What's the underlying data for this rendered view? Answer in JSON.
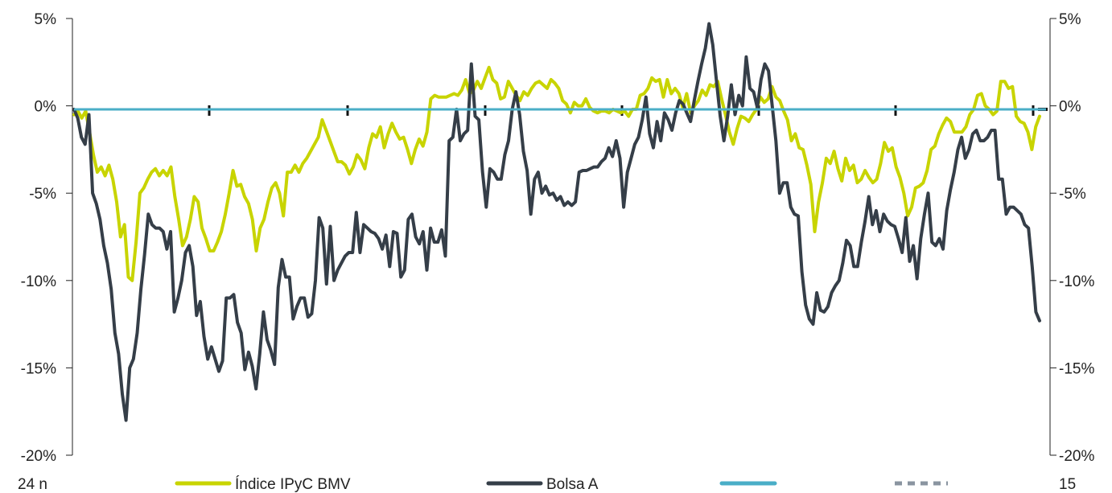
{
  "chart_data": {
    "type": "line",
    "title": "",
    "xlabel": "",
    "ylabel": "",
    "ylim": [
      -20,
      5
    ],
    "y_ticks": [
      5,
      0,
      -5,
      -10,
      -15,
      -20
    ],
    "y_tick_labels": [
      "5%",
      "0%",
      "-5%",
      "-10%",
      "-15%",
      "-20%"
    ],
    "x_ticks_visible": [
      "24 n",
      "15"
    ],
    "grid": false,
    "legend_placement": "bottom",
    "series": [
      {
        "name": "Índice IPyC BMV",
        "color": "#c8d400",
        "style": "solid",
        "values": [
          -0.5,
          -0.3,
          -0.7,
          -0.3,
          -1.5,
          -2.8,
          -3.8,
          -3.5,
          -4.0,
          -3.4,
          -4.2,
          -5.5,
          -7.5,
          -6.8,
          -9.8,
          -10.0,
          -7.8,
          -5.0,
          -4.7,
          -4.2,
          -3.8,
          -3.6,
          -4.0,
          -3.7,
          -4.0,
          -3.5,
          -5.2,
          -6.5,
          -8.0,
          -7.5,
          -6.5,
          -5.2,
          -5.5,
          -7.0,
          -7.6,
          -8.3,
          -8.3,
          -7.8,
          -7.2,
          -6.2,
          -5.0,
          -3.7,
          -4.6,
          -4.5,
          -5.2,
          -5.6,
          -6.5,
          -8.3,
          -7.0,
          -6.5,
          -5.5,
          -4.7,
          -4.4,
          -5.0,
          -6.3,
          -3.8,
          -3.8,
          -3.4,
          -3.8,
          -3.3,
          -3.0,
          -2.6,
          -2.2,
          -1.8,
          -0.8,
          -1.4,
          -2.0,
          -2.6,
          -3.2,
          -3.2,
          -3.4,
          -3.9,
          -3.5,
          -2.8,
          -3.1,
          -3.6,
          -2.4,
          -1.6,
          -1.8,
          -1.2,
          -2.4,
          -1.6,
          -1.0,
          -1.5,
          -1.9,
          -1.8,
          -2.5,
          -3.3,
          -2.5,
          -1.9,
          -2.3,
          -1.5,
          0.4,
          0.6,
          0.5,
          0.5,
          0.5,
          0.6,
          0.7,
          0.6,
          0.9,
          1.5,
          0.7,
          0.9,
          1.4,
          1.0,
          1.6,
          2.2,
          1.5,
          1.3,
          0.4,
          0.5,
          1.4,
          1.0,
          0.6,
          0.3,
          0.8,
          0.6,
          1.0,
          1.3,
          1.4,
          1.2,
          1.0,
          1.5,
          1.3,
          1.0,
          0.3,
          0.1,
          -0.4,
          0.2,
          0.0,
          0.0,
          0.4,
          -0.1,
          -0.3,
          -0.4,
          -0.3,
          -0.3,
          -0.4,
          -0.2,
          -0.3,
          -0.4,
          -0.3,
          -0.6,
          -0.2,
          -0.2,
          0.6,
          0.7,
          1.0,
          1.6,
          1.4,
          1.5,
          0.5,
          1.5,
          0.7,
          1.0,
          0.7,
          -0.1,
          0.7,
          -0.4,
          0.0,
          0.3,
          0.9,
          0.6,
          1.2,
          1.1,
          1.4,
          0.4,
          -0.5,
          -1.5,
          -2.2,
          -1.3,
          -0.6,
          -0.7,
          -0.9,
          -0.5,
          -0.2,
          0.5,
          0.2,
          0.4,
          1.1,
          0.5,
          0.3,
          -0.3,
          -0.8,
          -2.0,
          -1.6,
          -2.4,
          -2.5,
          -3.4,
          -4.5,
          -7.2,
          -5.5,
          -4.4,
          -3.0,
          -3.3,
          -2.6,
          -3.6,
          -4.3,
          -3.0,
          -3.7,
          -3.4,
          -4.4,
          -4.2,
          -3.7,
          -4.1,
          -4.4,
          -4.2,
          -3.3,
          -2.1,
          -2.6,
          -2.4,
          -3.5,
          -4.1,
          -5.0,
          -6.3,
          -5.8,
          -4.7,
          -4.6,
          -4.4,
          -3.7,
          -2.5,
          -2.3,
          -1.6,
          -1.1,
          -0.7,
          -0.9,
          -1.5,
          -1.5,
          -1.5,
          -1.2,
          -0.5,
          -0.2,
          0.6,
          0.7,
          0.0,
          -0.2,
          -0.5,
          -0.3,
          1.4,
          1.4,
          1.0,
          1.1,
          -0.6,
          -0.9,
          -1.0,
          -1.5,
          -2.5,
          -1.2,
          -0.6
        ]
      },
      {
        "name": "Bolsa A",
        "color": "#353e48",
        "style": "solid",
        "values": [
          -0.2,
          -0.7,
          -1.8,
          -2.2,
          -0.5,
          -5.0,
          -5.6,
          -6.5,
          -8.0,
          -9.0,
          -10.5,
          -13.0,
          -14.2,
          -16.5,
          -18.0,
          -15.0,
          -14.5,
          -13.0,
          -10.5,
          -8.5,
          -6.2,
          -6.8,
          -7.0,
          -7.0,
          -7.2,
          -8.2,
          -7.2,
          -11.8,
          -11.0,
          -10.0,
          -8.4,
          -8.0,
          -9.2,
          -12.0,
          -11.2,
          -13.2,
          -14.5,
          -13.8,
          -14.5,
          -15.2,
          -14.6,
          -11.0,
          -11.0,
          -10.8,
          -12.4,
          -13.0,
          -15.1,
          -14.1,
          -14.9,
          -16.2,
          -14.2,
          -11.8,
          -13.4,
          -14.0,
          -14.8,
          -10.4,
          -8.8,
          -9.8,
          -9.8,
          -12.2,
          -11.5,
          -11.0,
          -11.0,
          -12.1,
          -11.9,
          -10.0,
          -6.4,
          -7.0,
          -10.2,
          -6.9,
          -10.0,
          -9.4,
          -9.0,
          -8.6,
          -8.4,
          -8.4,
          -6.1,
          -8.4,
          -6.8,
          -7.0,
          -7.2,
          -7.3,
          -7.6,
          -8.2,
          -7.4,
          -9.2,
          -7.2,
          -7.3,
          -9.8,
          -9.4,
          -6.5,
          -6.2,
          -7.5,
          -7.9,
          -7.2,
          -9.4,
          -7.0,
          -7.8,
          -7.8,
          -7.1,
          -8.6,
          -2.0,
          -1.8,
          -0.2,
          -2.0,
          -1.6,
          -1.4,
          2.4,
          -0.6,
          -0.8,
          -3.8,
          -5.8,
          -3.6,
          -3.8,
          -4.2,
          -4.2,
          -2.8,
          -2.0,
          -0.2,
          0.8,
          -0.5,
          -2.6,
          -3.7,
          -6.2,
          -4.2,
          -3.8,
          -5.0,
          -4.6,
          -5.1,
          -5.0,
          -5.4,
          -5.2,
          -5.7,
          -5.5,
          -5.7,
          -5.5,
          -3.8,
          -3.7,
          -3.7,
          -3.6,
          -3.5,
          -3.5,
          -3.2,
          -3.0,
          -2.4,
          -2.9,
          -2.0,
          -3.0,
          -5.8,
          -3.8,
          -3.0,
          -2.2,
          -1.8,
          -0.8,
          0.5,
          -1.6,
          -2.4,
          -0.9,
          -2.0,
          -0.4,
          -0.8,
          -1.4,
          -0.4,
          0.3,
          0.1,
          -0.4,
          -0.9,
          0.3,
          1.4,
          2.4,
          3.3,
          4.7,
          3.5,
          1.4,
          -0.6,
          -2.0,
          -0.6,
          1.2,
          -0.5,
          0.6,
          0.0,
          2.8,
          1.0,
          0.8,
          -0.1,
          1.5,
          2.4,
          2.0,
          0.0,
          -2.0,
          -5.0,
          -4.4,
          -4.4,
          -5.8,
          -6.2,
          -6.3,
          -9.5,
          -11.4,
          -12.2,
          -12.5,
          -10.7,
          -11.7,
          -11.8,
          -11.5,
          -10.7,
          -10.3,
          -10.0,
          -9.0,
          -7.7,
          -8.0,
          -9.2,
          -9.2,
          -7.8,
          -6.6,
          -5.2,
          -6.8,
          -6.0,
          -7.2,
          -6.2,
          -6.6,
          -6.8,
          -6.9,
          -7.6,
          -8.4,
          -6.4,
          -8.9,
          -8.0,
          -9.9,
          -7.6,
          -6.2,
          -5.0,
          -7.8,
          -8.0,
          -7.6,
          -8.2,
          -6.0,
          -4.8,
          -3.8,
          -2.5,
          -1.8,
          -3.0,
          -2.5,
          -1.6,
          -1.4,
          -2.0,
          -2.0,
          -1.8,
          -1.4,
          -1.4,
          -4.2,
          -4.2,
          -6.2,
          -5.8,
          -5.8,
          -6.0,
          -6.2,
          -6.8,
          -7.0,
          -9.2,
          -11.8,
          -12.3
        ]
      },
      {
        "name": "",
        "color": "#4aaec7",
        "style": "solid",
        "constant": -0.2
      },
      {
        "name": "",
        "color": "#8a94a0",
        "style": "dashed",
        "constant": -0.2
      }
    ]
  }
}
